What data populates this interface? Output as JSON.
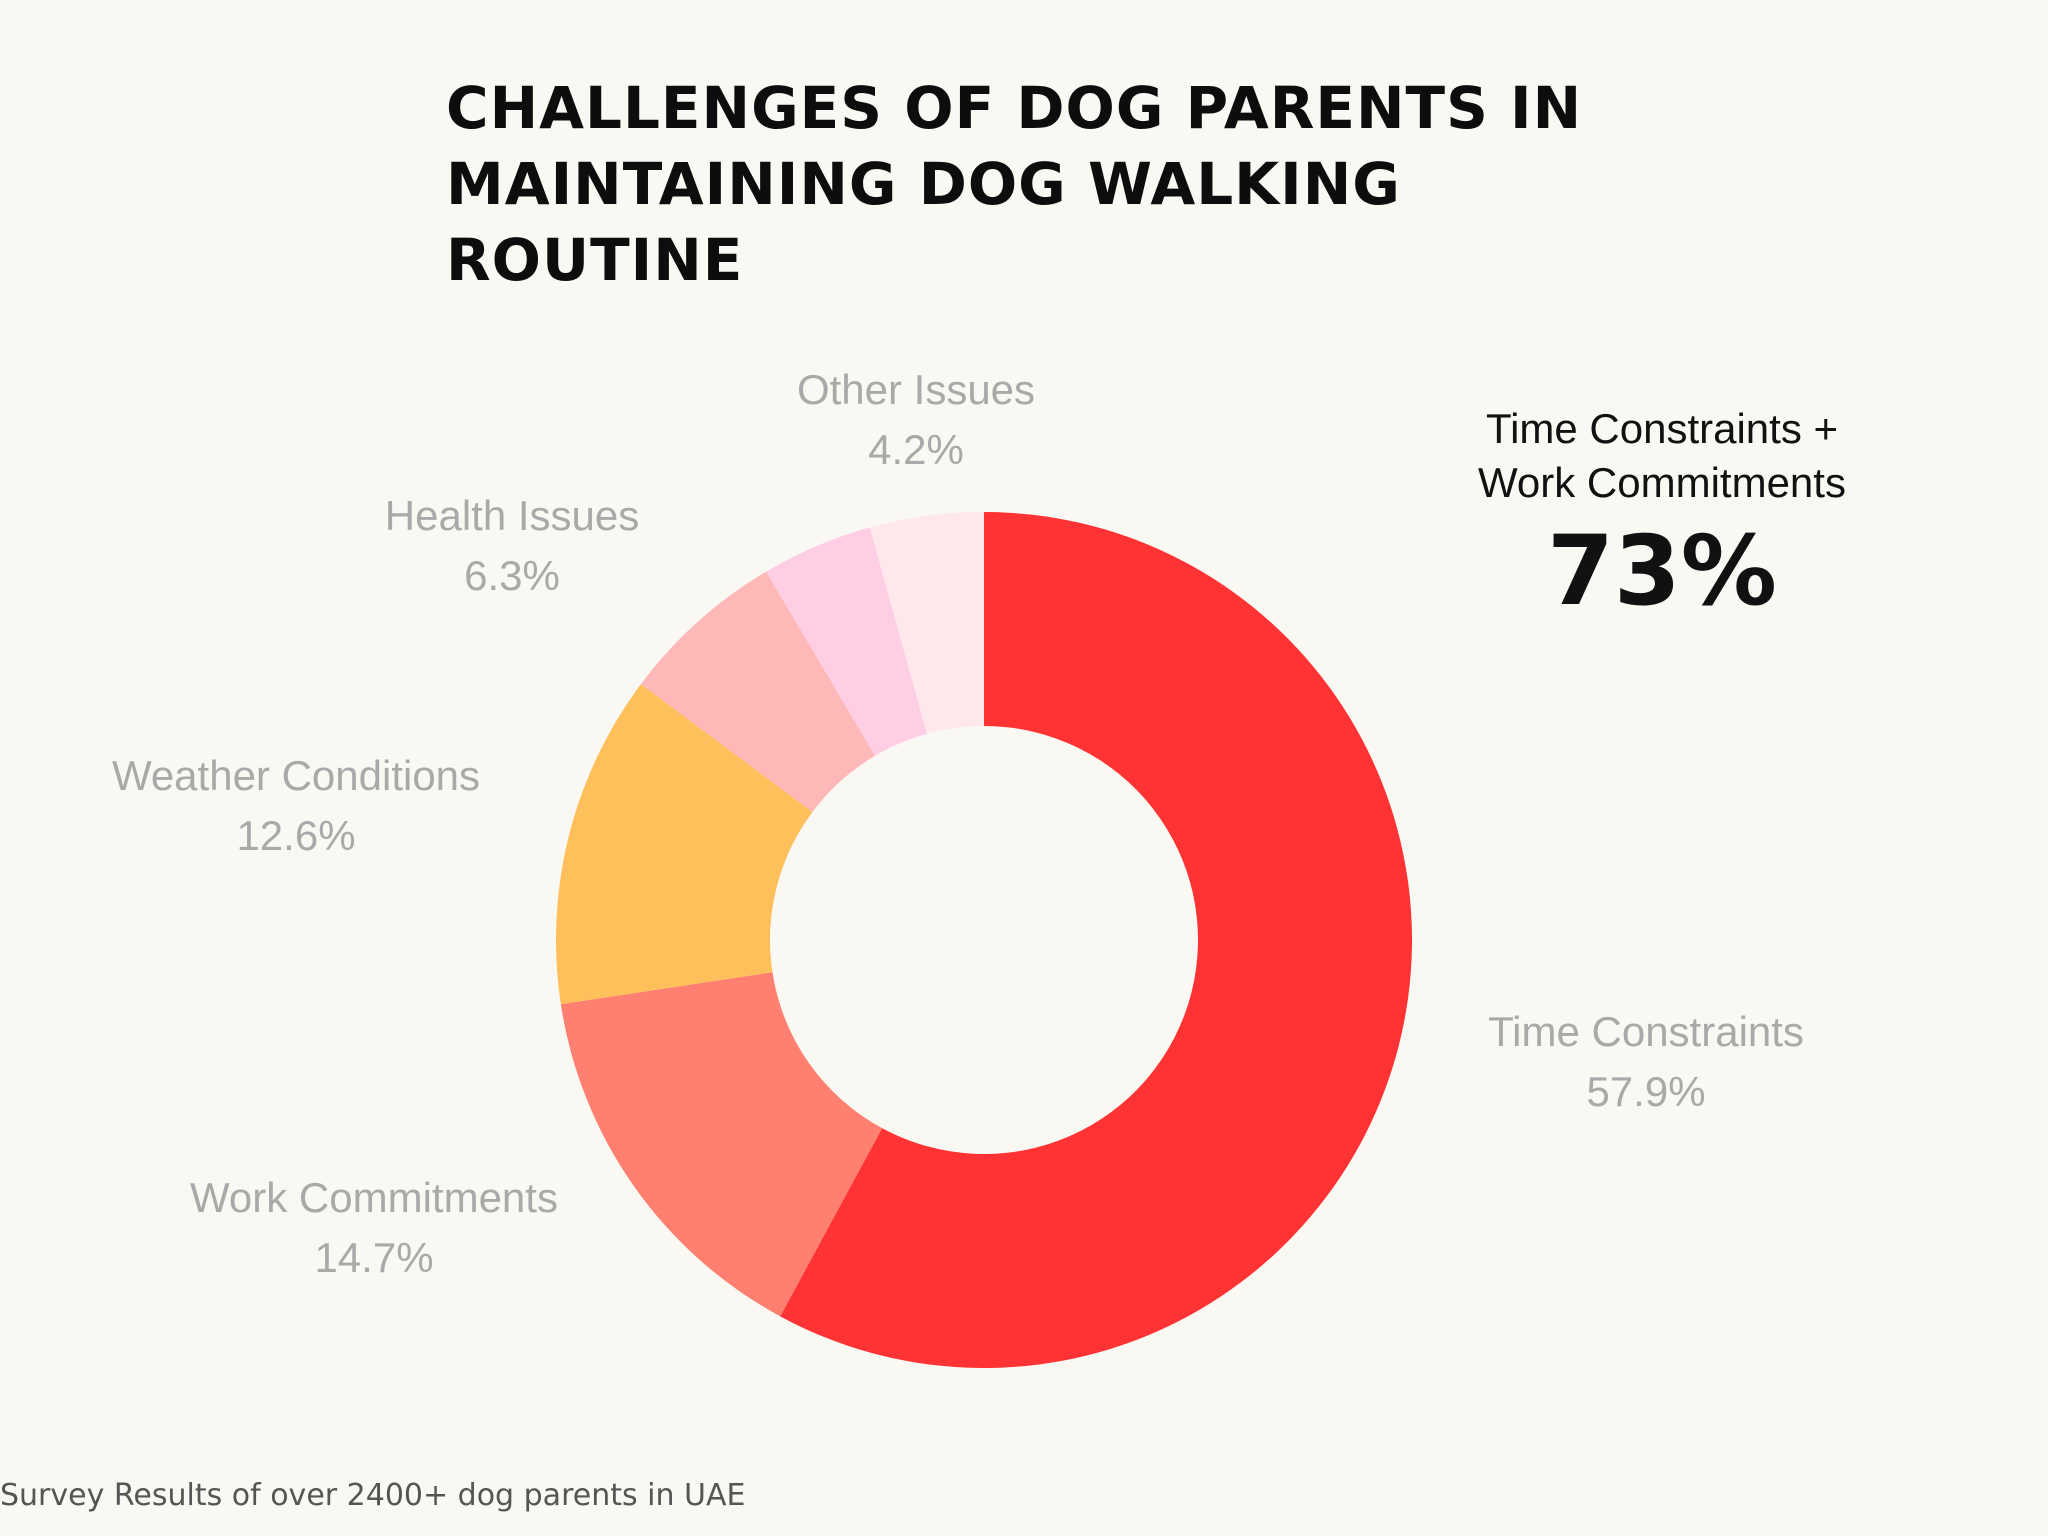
{
  "title": {
    "line1": "CHALLENGES OF DOG PARENTS IN",
    "line2": "MAINTAINING DOG WALKING ROUTINE"
  },
  "callout": {
    "label_line1": "Time Constraints +",
    "label_line2": "Work Commitments",
    "value": "73%"
  },
  "footnote": "Survey Results of over 2400+ dog parents in UAE",
  "chart_data": {
    "type": "pie",
    "style": "donut",
    "unit": "%",
    "slices": [
      {
        "label": "Time Constraints",
        "value": 57.9,
        "display": "57.9%",
        "color": "#ff3333"
      },
      {
        "label": "Work Commitments",
        "value": 14.7,
        "display": "14.7%",
        "color": "#ff8070"
      },
      {
        "label": "Weather Conditions",
        "value": 12.6,
        "display": "12.6%",
        "color": "#ffbf5b"
      },
      {
        "label": "Health Issues",
        "value": 6.3,
        "display": "6.3%",
        "color": "#ffb8b8"
      },
      {
        "label": "Other Issues",
        "value": 4.2,
        "display": "4.2%",
        "color": "#ffcde4"
      },
      {
        "label": "",
        "value": 4.3,
        "display": "",
        "color": "#ffe8ec"
      }
    ]
  }
}
